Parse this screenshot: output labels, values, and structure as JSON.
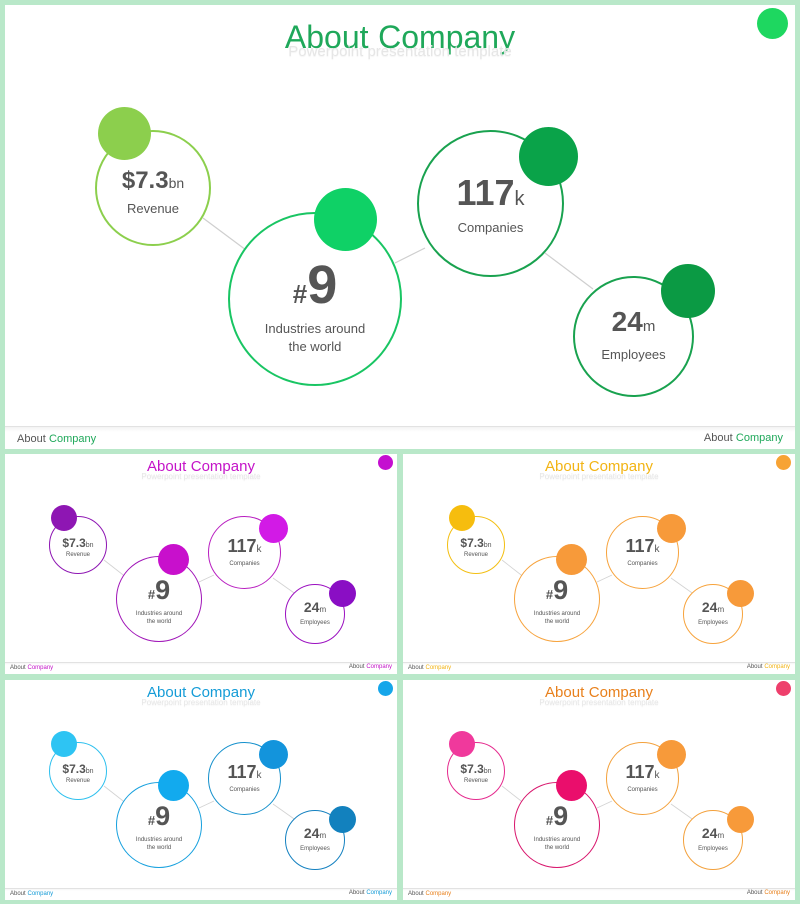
{
  "title": {
    "word1": "About",
    "word2": "Company"
  },
  "subtitle": "Powerpoint presentation template",
  "footer": {
    "word1": "About",
    "word2": "Company"
  },
  "stats": {
    "revenue": {
      "value": "$7.3",
      "unit": "bn",
      "label": "Revenue"
    },
    "industries": {
      "prefix": "#",
      "value": "9",
      "label_line1": "Industries around",
      "label_line2": "the world"
    },
    "companies": {
      "value": "117",
      "unit": "k",
      "label": "Companies"
    },
    "employees": {
      "value": "24",
      "unit": "m",
      "label": "Employees"
    }
  },
  "themes": [
    {
      "name": "green",
      "title": "#1fa85a",
      "corner": "#1ed760",
      "ring1": "#8ccf4d",
      "dot1": "#8ccf4d",
      "ring2": "#19c563",
      "dot2": "#0fd166",
      "ring3": "#19a24f",
      "dot3": "#0aa349",
      "ring4": "#19a24f",
      "dot4": "#0b9a44",
      "footer": "#1fa85a"
    },
    {
      "name": "purple",
      "title": "#c414c8",
      "corner": "#c40fd0",
      "ring1": "#8e16b3",
      "dot1": "#8e16b3",
      "ring2": "#a015b8",
      "dot2": "#c810cc",
      "ring3": "#b81dc0",
      "dot3": "#d21ae6",
      "ring4": "#9b10c0",
      "dot4": "#8a0ec4",
      "footer": "#c414c8"
    },
    {
      "name": "orange",
      "title": "#f2b414",
      "corner": "#f7a334",
      "ring1": "#f3bf13",
      "dot1": "#f6bd0e",
      "ring2": "#f7a33c",
      "dot2": "#f79a3a",
      "ring3": "#f7a33c",
      "dot3": "#f79a3a",
      "ring4": "#f7a33c",
      "dot4": "#f79a3a",
      "footer": "#f2b414"
    },
    {
      "name": "blue",
      "title": "#159cd7",
      "corner": "#16a6ea",
      "ring1": "#2ec0ee",
      "dot1": "#2ec4f3",
      "ring2": "#16a0de",
      "dot2": "#12aaee",
      "ring3": "#1490cc",
      "dot3": "#1394dc",
      "ring4": "#1481c0",
      "dot4": "#1281be",
      "footer": "#159cd7"
    },
    {
      "name": "pink-orange",
      "title": "#e8801c",
      "corner": "#ee3f6c",
      "ring1": "#e52a8e",
      "dot1": "#f0399c",
      "ring2": "#d8156c",
      "dot2": "#ea0e6c",
      "ring3": "#f3a13c",
      "dot3": "#f79a3a",
      "ring4": "#f3a13c",
      "dot4": "#f79a3a",
      "footer": "#e8801c"
    }
  ]
}
